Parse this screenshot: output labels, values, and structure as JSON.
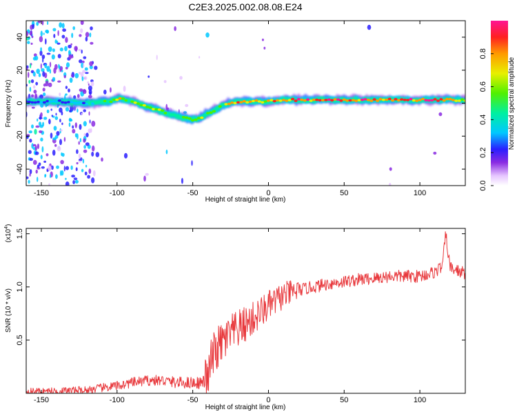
{
  "title": "C2E3.2025.002.08.08.E24",
  "colorbar": {
    "label": "Normalized spectral amplitude",
    "ticks": [
      "0.0",
      "0.2",
      "0.4",
      "0.6",
      "0.8"
    ],
    "tick_values": [
      0.0,
      0.2,
      0.4,
      0.6,
      0.8
    ],
    "range": [
      0,
      1
    ]
  },
  "chart_data": [
    {
      "type": "heatmap",
      "name": "spectrogram",
      "xlabel": "Height of straight line (km)",
      "ylabel": "Frequency (Hz)",
      "xlim": [
        -160,
        130
      ],
      "ylim": [
        -50,
        50
      ],
      "xticks": [
        -150,
        -100,
        -50,
        0,
        50,
        100
      ],
      "xtick_labels": [
        "-150",
        "-100",
        "-50",
        "0",
        "50",
        "100"
      ],
      "yticks": [
        -40,
        -20,
        0,
        20,
        40
      ],
      "ytick_labels": [
        "-40",
        "-20",
        "0",
        "20",
        "40"
      ],
      "ridge": {
        "x": [
          -160,
          -140,
          -120,
          -105,
          -98,
          -90,
          -80,
          -70,
          -60,
          -50,
          -45,
          -40,
          -35,
          -30,
          -25,
          -20,
          -10,
          0,
          10,
          20,
          40,
          60,
          80,
          100,
          120,
          130
        ],
        "freq_hz": [
          1,
          1,
          0,
          1,
          3,
          1,
          -2,
          -5,
          -8,
          -10,
          -9,
          -6,
          -4,
          -1,
          0,
          1,
          1,
          1,
          2,
          2,
          2,
          2,
          2,
          2,
          2,
          2
        ],
        "amplitude": [
          0.2,
          0.25,
          0.3,
          0.5,
          0.75,
          0.55,
          0.6,
          0.55,
          0.5,
          0.55,
          0.6,
          0.5,
          0.55,
          0.6,
          0.7,
          0.85,
          0.8,
          0.75,
          0.85,
          0.95,
          0.97,
          0.95,
          0.9,
          0.92,
          0.9,
          0.6
        ]
      }
    },
    {
      "type": "line",
      "name": "snr",
      "xlabel": "Height of straight line (km)",
      "ylabel": "SNR (10 * v/v)",
      "scale_label": "(x10",
      "scale_exp": "4",
      "scale_close": ")",
      "xlim": [
        -160,
        130
      ],
      "ylim": [
        0,
        1.55
      ],
      "xticks": [
        -150,
        -100,
        -50,
        0,
        50,
        100
      ],
      "xtick_labels": [
        "-150",
        "-100",
        "-50",
        "0",
        "50",
        "100"
      ],
      "yticks": [
        0.5,
        1.0,
        1.5
      ],
      "ytick_labels": [
        "0.5",
        "1.0",
        "1.5"
      ],
      "color": "#e8383c",
      "series": [
        {
          "name": "SNR",
          "x": [
            -160,
            -140,
            -120,
            -110,
            -100,
            -90,
            -80,
            -70,
            -60,
            -50,
            -45,
            -40,
            -38,
            -35,
            -30,
            -25,
            -20,
            -10,
            0,
            10,
            20,
            30,
            40,
            50,
            60,
            70,
            80,
            90,
            100,
            110,
            115,
            117,
            120,
            125,
            130
          ],
          "y": [
            0.02,
            0.02,
            0.03,
            0.05,
            0.07,
            0.1,
            0.12,
            0.12,
            0.1,
            0.1,
            0.1,
            0.12,
            0.3,
            0.4,
            0.48,
            0.55,
            0.6,
            0.7,
            0.82,
            0.92,
            0.97,
            1.0,
            1.03,
            1.05,
            1.07,
            1.08,
            1.1,
            1.1,
            1.1,
            1.14,
            1.2,
            1.5,
            1.18,
            1.15,
            1.13
          ]
        }
      ]
    }
  ]
}
